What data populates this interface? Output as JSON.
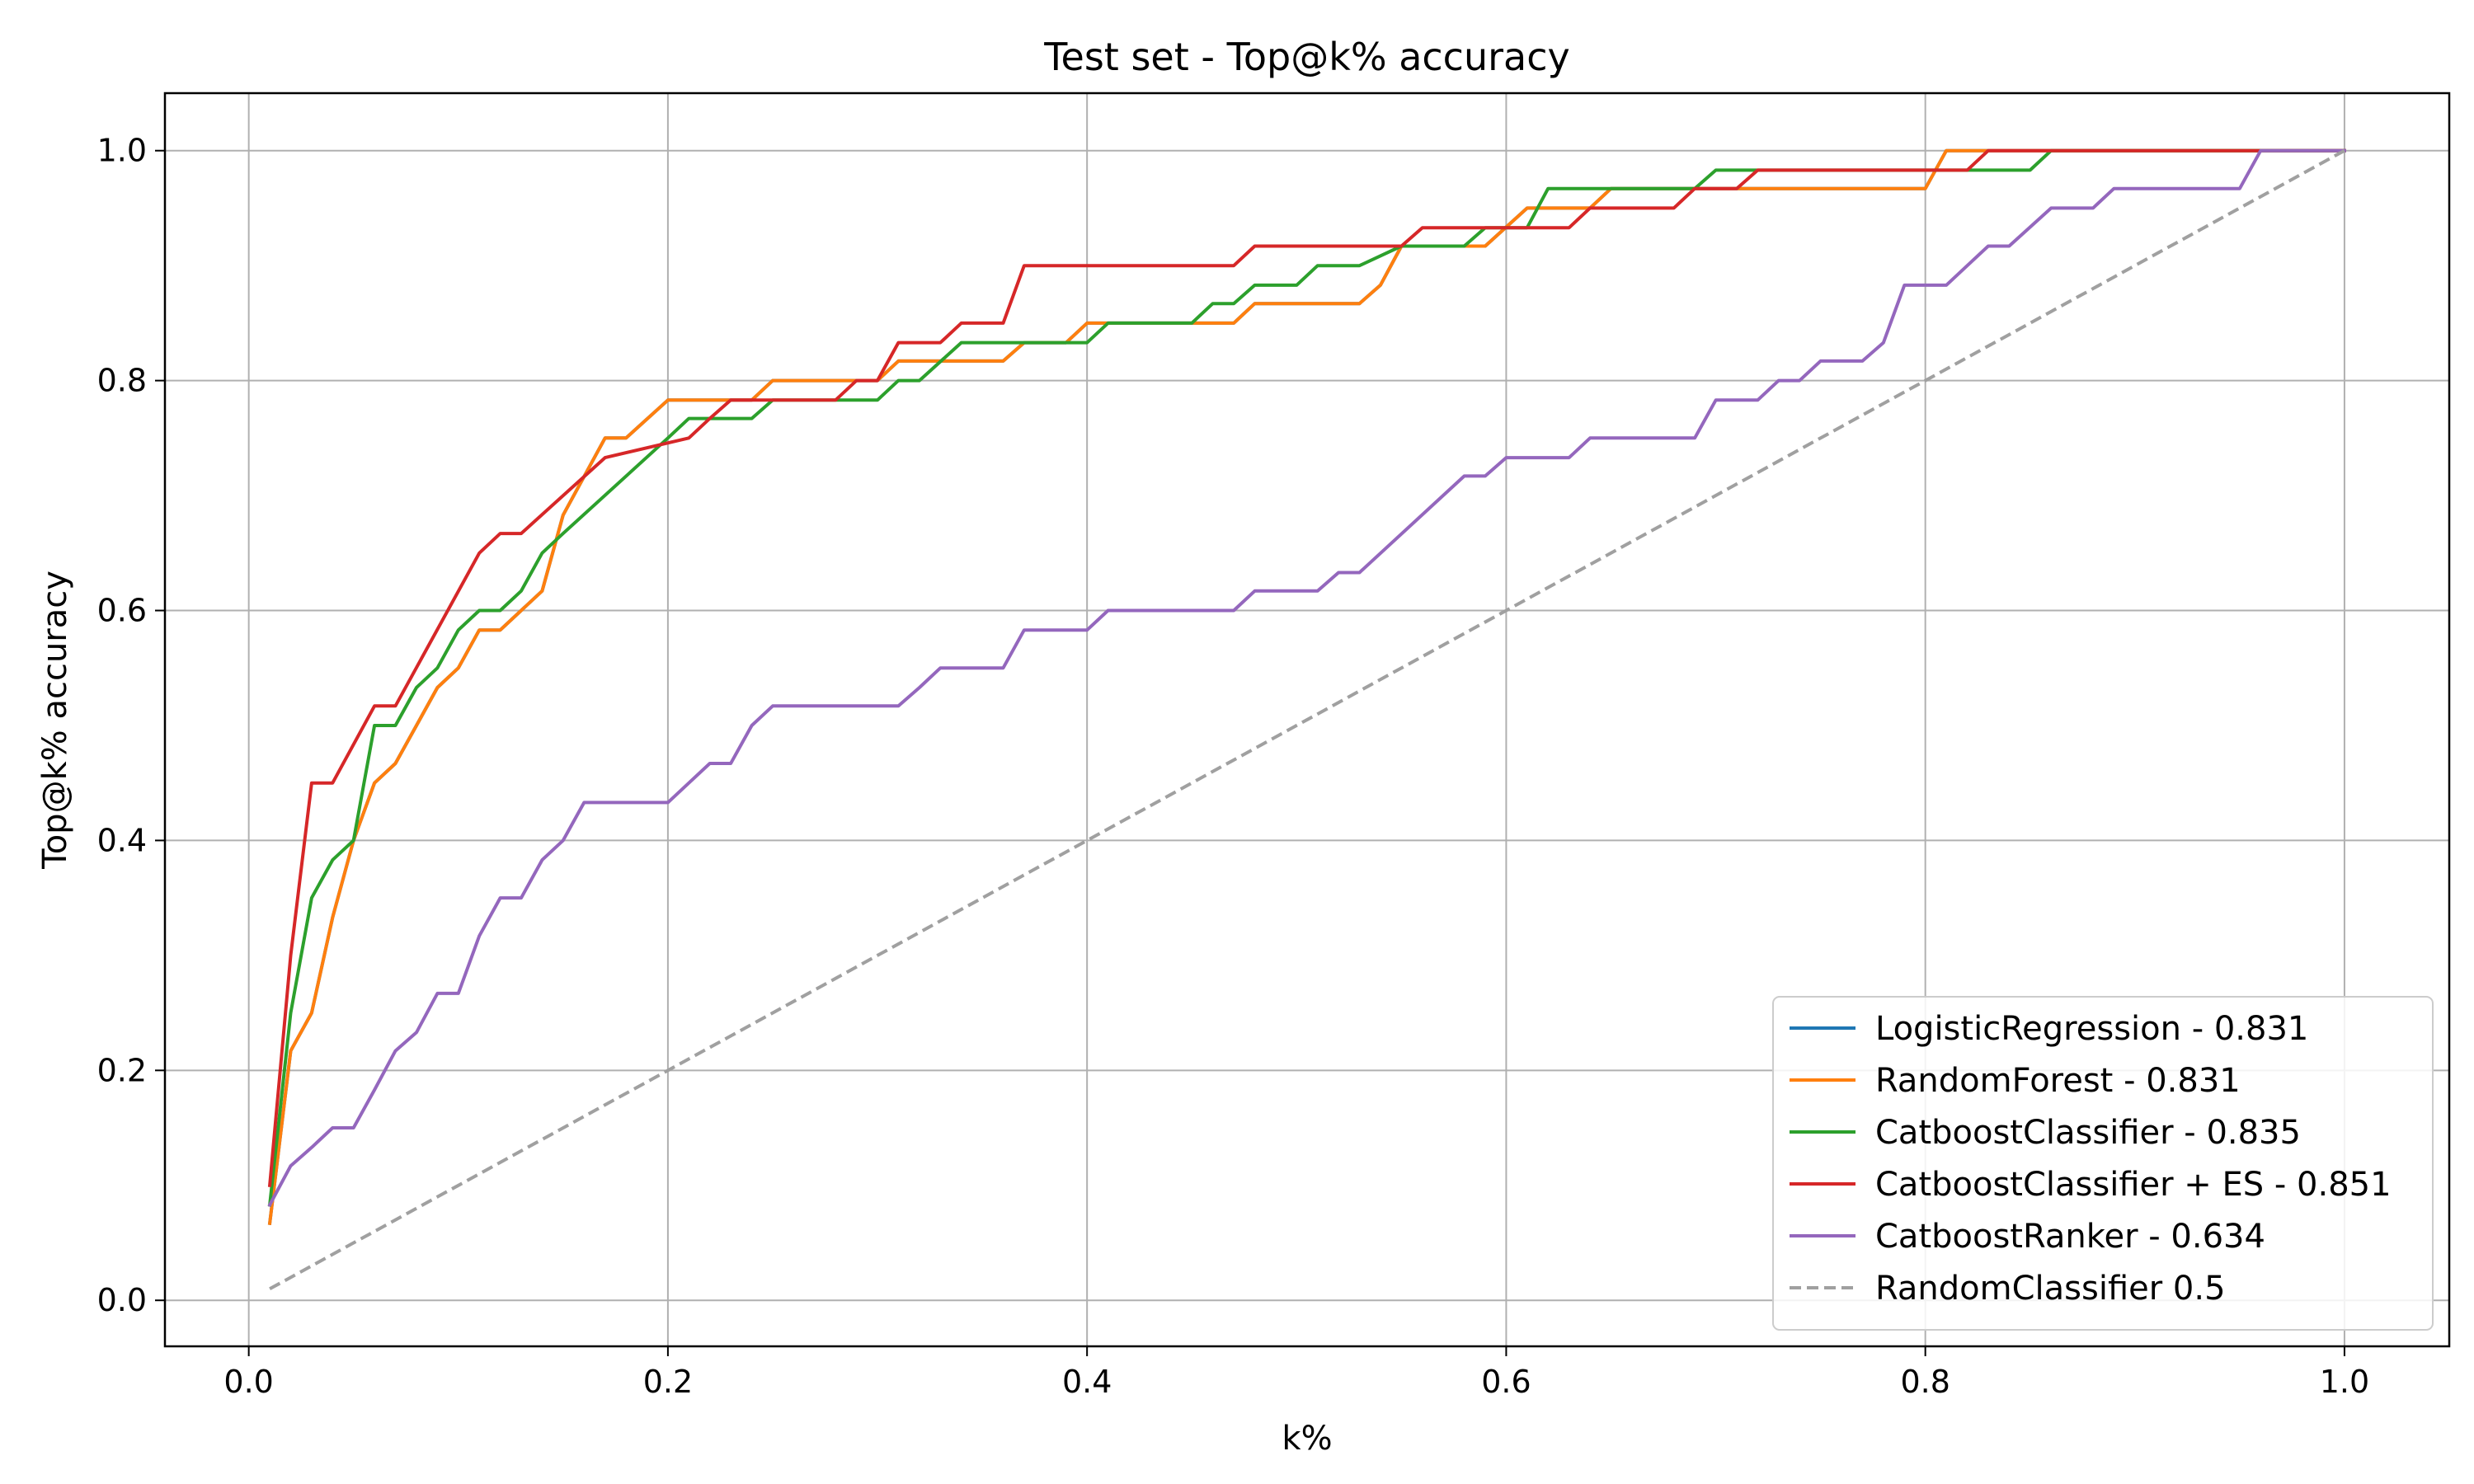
{
  "chart_data": {
    "type": "line",
    "title": "Test set - Top@k% accuracy",
    "xlabel": "k%",
    "ylabel": "Top@k% accuracy",
    "xlim": [
      -0.04,
      1.05
    ],
    "ylim": [
      -0.04,
      1.05
    ],
    "xticks": [
      0.0,
      0.2,
      0.4,
      0.6,
      0.8,
      1.0
    ],
    "xtick_labels": [
      "0.0",
      "0.2",
      "0.4",
      "0.6",
      "0.8",
      "1.0"
    ],
    "yticks": [
      0.0,
      0.2,
      0.4,
      0.6,
      0.8,
      1.0
    ],
    "ytick_labels": [
      "0.0",
      "0.2",
      "0.4",
      "0.6",
      "0.8",
      "1.0"
    ],
    "grid": true,
    "legend_position": "lower-right",
    "series": [
      {
        "name": "LogisticRegression - 0.831",
        "color": "#1f77b4",
        "dash": false,
        "x": [
          0.01,
          0.02,
          0.03,
          0.04,
          0.05,
          0.06,
          0.07,
          0.08,
          0.09,
          0.1,
          0.11,
          0.12,
          0.13,
          0.14,
          0.15,
          0.17,
          0.18,
          0.2,
          0.23,
          0.24,
          0.25,
          0.28,
          0.3,
          0.31,
          0.36,
          0.37,
          0.39,
          0.4,
          0.42,
          0.47,
          0.48,
          0.53,
          0.54,
          0.55,
          0.59,
          0.61,
          0.64,
          0.65,
          0.8,
          0.81,
          0.83,
          0.86,
          0.96,
          1.0
        ],
        "y": [
          0.067,
          0.217,
          0.25,
          0.333,
          0.4,
          0.45,
          0.467,
          0.5,
          0.533,
          0.55,
          0.583,
          0.583,
          0.6,
          0.617,
          0.683,
          0.75,
          0.75,
          0.783,
          0.783,
          0.783,
          0.8,
          0.8,
          0.8,
          0.817,
          0.817,
          0.833,
          0.833,
          0.85,
          0.85,
          0.85,
          0.867,
          0.867,
          0.883,
          0.917,
          0.917,
          0.95,
          0.95,
          0.967,
          0.967,
          1.0,
          1.0,
          1.0,
          1.0,
          1.0
        ]
      },
      {
        "name": "RandomForest - 0.831",
        "color": "#ff7f0e",
        "dash": false,
        "x": [
          0.01,
          0.02,
          0.03,
          0.04,
          0.05,
          0.06,
          0.07,
          0.08,
          0.09,
          0.1,
          0.11,
          0.12,
          0.13,
          0.14,
          0.15,
          0.17,
          0.18,
          0.2,
          0.23,
          0.24,
          0.25,
          0.28,
          0.3,
          0.31,
          0.36,
          0.37,
          0.39,
          0.4,
          0.42,
          0.47,
          0.48,
          0.53,
          0.54,
          0.55,
          0.59,
          0.61,
          0.64,
          0.65,
          0.8,
          0.81,
          0.83,
          0.86,
          0.96,
          1.0
        ],
        "y": [
          0.067,
          0.217,
          0.25,
          0.333,
          0.4,
          0.45,
          0.467,
          0.5,
          0.533,
          0.55,
          0.583,
          0.583,
          0.6,
          0.617,
          0.683,
          0.75,
          0.75,
          0.783,
          0.783,
          0.783,
          0.8,
          0.8,
          0.8,
          0.817,
          0.817,
          0.833,
          0.833,
          0.85,
          0.85,
          0.85,
          0.867,
          0.867,
          0.883,
          0.917,
          0.917,
          0.95,
          0.95,
          0.967,
          0.967,
          1.0,
          1.0,
          1.0,
          1.0,
          1.0
        ]
      },
      {
        "name": "CatboostClassifier - 0.835",
        "color": "#2ca02c",
        "dash": false,
        "x": [
          0.01,
          0.02,
          0.03,
          0.04,
          0.05,
          0.06,
          0.07,
          0.08,
          0.09,
          0.1,
          0.11,
          0.12,
          0.13,
          0.14,
          0.15,
          0.2,
          0.21,
          0.22,
          0.23,
          0.24,
          0.25,
          0.3,
          0.31,
          0.32,
          0.34,
          0.36,
          0.38,
          0.4,
          0.41,
          0.44,
          0.45,
          0.46,
          0.47,
          0.48,
          0.5,
          0.51,
          0.53,
          0.55,
          0.58,
          0.59,
          0.61,
          0.62,
          0.69,
          0.7,
          0.72,
          0.84,
          0.85,
          0.86,
          0.96,
          1.0
        ],
        "y": [
          0.083,
          0.25,
          0.35,
          0.383,
          0.4,
          0.5,
          0.5,
          0.533,
          0.55,
          0.583,
          0.6,
          0.6,
          0.617,
          0.65,
          0.667,
          0.75,
          0.767,
          0.767,
          0.767,
          0.767,
          0.783,
          0.783,
          0.8,
          0.8,
          0.833,
          0.833,
          0.833,
          0.833,
          0.85,
          0.85,
          0.85,
          0.867,
          0.867,
          0.883,
          0.883,
          0.9,
          0.9,
          0.917,
          0.917,
          0.933,
          0.933,
          0.967,
          0.967,
          0.983,
          0.983,
          0.983,
          0.983,
          1.0,
          1.0,
          1.0
        ]
      },
      {
        "name": "CatboostClassifier + ES - 0.851",
        "color": "#d62728",
        "dash": false,
        "x": [
          0.01,
          0.02,
          0.03,
          0.04,
          0.06,
          0.07,
          0.11,
          0.12,
          0.13,
          0.17,
          0.21,
          0.22,
          0.23,
          0.24,
          0.28,
          0.29,
          0.3,
          0.31,
          0.32,
          0.33,
          0.34,
          0.36,
          0.37,
          0.47,
          0.48,
          0.55,
          0.56,
          0.59,
          0.63,
          0.64,
          0.68,
          0.69,
          0.71,
          0.72,
          0.82,
          0.83,
          0.96,
          1.0
        ],
        "y": [
          0.1,
          0.3,
          0.45,
          0.45,
          0.517,
          0.517,
          0.65,
          0.667,
          0.667,
          0.733,
          0.75,
          0.767,
          0.783,
          0.783,
          0.783,
          0.8,
          0.8,
          0.833,
          0.833,
          0.833,
          0.85,
          0.85,
          0.9,
          0.9,
          0.917,
          0.917,
          0.933,
          0.933,
          0.933,
          0.95,
          0.95,
          0.967,
          0.967,
          0.983,
          0.983,
          1.0,
          1.0,
          1.0
        ]
      },
      {
        "name": "CatboostRanker - 0.634",
        "color": "#9467bd",
        "dash": false,
        "x": [
          0.01,
          0.02,
          0.03,
          0.04,
          0.05,
          0.06,
          0.07,
          0.08,
          0.09,
          0.1,
          0.11,
          0.12,
          0.13,
          0.14,
          0.15,
          0.16,
          0.2,
          0.21,
          0.22,
          0.23,
          0.24,
          0.25,
          0.31,
          0.32,
          0.33,
          0.36,
          0.37,
          0.4,
          0.41,
          0.47,
          0.48,
          0.51,
          0.52,
          0.53,
          0.58,
          0.59,
          0.6,
          0.63,
          0.64,
          0.69,
          0.7,
          0.72,
          0.73,
          0.74,
          0.75,
          0.77,
          0.78,
          0.79,
          0.81,
          0.82,
          0.83,
          0.84,
          0.86,
          0.88,
          0.89,
          0.95,
          0.96,
          1.0
        ],
        "y": [
          0.083,
          0.117,
          0.133,
          0.15,
          0.15,
          0.183,
          0.217,
          0.233,
          0.267,
          0.267,
          0.317,
          0.35,
          0.35,
          0.383,
          0.4,
          0.433,
          0.433,
          0.45,
          0.467,
          0.467,
          0.5,
          0.517,
          0.517,
          0.533,
          0.55,
          0.55,
          0.583,
          0.583,
          0.6,
          0.6,
          0.617,
          0.617,
          0.633,
          0.633,
          0.717,
          0.717,
          0.733,
          0.733,
          0.75,
          0.75,
          0.783,
          0.783,
          0.8,
          0.8,
          0.817,
          0.817,
          0.833,
          0.883,
          0.883,
          0.9,
          0.917,
          0.917,
          0.95,
          0.95,
          0.967,
          0.967,
          1.0,
          1.0
        ]
      },
      {
        "name": "RandomClassifier 0.5",
        "color": "#a0a0a0",
        "dash": true,
        "x": [
          0.01,
          1.0
        ],
        "y": [
          0.01,
          1.0
        ]
      }
    ]
  }
}
